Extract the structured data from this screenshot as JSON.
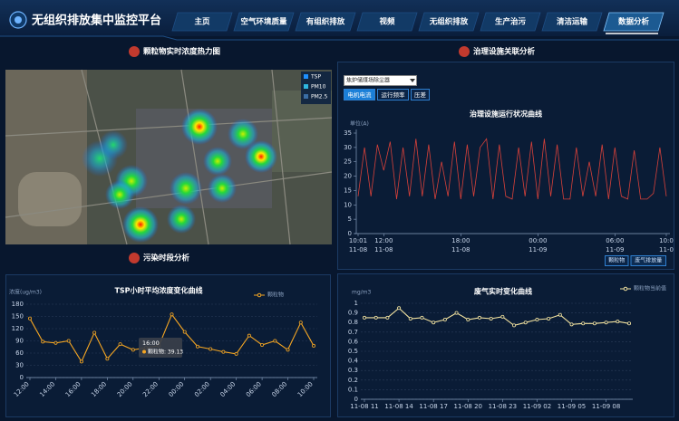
{
  "header": {
    "title": "无组织排放集中监控平台",
    "nav": [
      "主页",
      "空气环境质量",
      "有组织排放",
      "视频",
      "无组织排放",
      "生产治污",
      "清洁运输",
      "数据分析"
    ],
    "active": 7
  },
  "panels": {
    "heatmap": {
      "title": "颗粒物实时浓度热力图",
      "layers": [
        "TSP",
        "PM10",
        "PM2.5"
      ]
    },
    "facility": {
      "title": "治理设施关联分析",
      "select": "焦炉储煤场除尘器",
      "tabs": [
        "电机电流",
        "运行频率",
        "压差"
      ],
      "buttons": [
        "颗粒物",
        "废气排放量"
      ]
    },
    "period": {
      "title": "污染时段分析"
    }
  },
  "chart_data": [
    {
      "type": "line",
      "title": "治理设施运行状况曲线",
      "y_label": "单位(A)",
      "categories": [
        "10:01",
        null,
        null,
        null,
        "12:00",
        null,
        null,
        null,
        null,
        null,
        null,
        null,
        null,
        null,
        null,
        null,
        "18:00",
        null,
        null,
        null,
        null,
        null,
        null,
        null,
        null,
        null,
        null,
        null,
        "00:00",
        null,
        null,
        null,
        null,
        null,
        null,
        null,
        null,
        null,
        null,
        null,
        "06:00",
        null,
        null,
        null,
        null,
        null,
        null,
        null,
        "10:0"
      ],
      "category_dates": [
        "11-08",
        null,
        null,
        null,
        "11-08",
        null,
        null,
        null,
        null,
        null,
        null,
        null,
        null,
        null,
        null,
        null,
        "11-08",
        null,
        null,
        null,
        null,
        null,
        null,
        null,
        null,
        null,
        null,
        null,
        "11-09",
        null,
        null,
        null,
        null,
        null,
        null,
        null,
        null,
        null,
        null,
        null,
        "11-09",
        null,
        null,
        null,
        null,
        null,
        null,
        null,
        "11-0"
      ],
      "series": [
        {
          "color": "#d8413a",
          "values": [
            13,
            30,
            13,
            31,
            22,
            32,
            12,
            30,
            13,
            33,
            13,
            31,
            12,
            25,
            13,
            32,
            12,
            31,
            13,
            30,
            33,
            12,
            31,
            13,
            12,
            30,
            13,
            32,
            12,
            33,
            13,
            31,
            12,
            12,
            30,
            13,
            25,
            13,
            31,
            12,
            30,
            13,
            12,
            29,
            12,
            12,
            14,
            30,
            13
          ]
        }
      ],
      "ylim": [
        0,
        35
      ],
      "yticks": [
        0,
        5,
        10,
        15,
        20,
        25,
        30,
        35
      ],
      "grid": false
    },
    {
      "type": "line",
      "title": "TSP小时平均浓度变化曲线",
      "y_label": "浓度(ug/m3)",
      "categories": [
        "12:00",
        null,
        "14:00",
        null,
        "16:00",
        null,
        "18:00",
        null,
        "20:00",
        null,
        "22:00",
        null,
        "00:00",
        null,
        "02:00",
        null,
        "04:00",
        null,
        "06:00",
        null,
        "08:00",
        null,
        "10:00"
      ],
      "series": [
        {
          "name": "颗粒物",
          "color": "#f5a623",
          "values": [
            145,
            88,
            85,
            90,
            39.13,
            110,
            46,
            82,
            68,
            73,
            78,
            155,
            112,
            76,
            70,
            63,
            58,
            103,
            80,
            90,
            68,
            135,
            78
          ]
        }
      ],
      "ylim": [
        0,
        180
      ],
      "yticks": [
        0,
        30,
        60,
        90,
        120,
        150,
        180
      ],
      "grid": true,
      "tooltip": {
        "title": "16:00",
        "text": "颗粒物: 39.13"
      }
    },
    {
      "type": "line",
      "title": "废气实时变化曲线",
      "y_label": "mg/m3",
      "categories": [
        "11-08 11",
        null,
        null,
        "11-08 14",
        null,
        null,
        "11-08 17",
        null,
        null,
        "11-08 20",
        null,
        null,
        "11-08 23",
        null,
        null,
        "11-09 02",
        null,
        null,
        "11-09 05",
        null,
        null,
        "11-09 08",
        null,
        null
      ],
      "series": [
        {
          "name": "颗粒物当前值",
          "color": "#f3e3a0",
          "values": [
            0.85,
            0.85,
            0.85,
            0.95,
            0.84,
            0.85,
            0.8,
            0.83,
            0.9,
            0.83,
            0.85,
            0.84,
            0.86,
            0.77,
            0.8,
            0.83,
            0.84,
            0.88,
            0.78,
            0.79,
            0.79,
            0.8,
            0.81,
            0.79
          ]
        }
      ],
      "ylim": [
        0,
        1
      ],
      "yticks": [
        0,
        0.1,
        0.2,
        0.3,
        0.4,
        0.5,
        0.6,
        0.7,
        0.8,
        0.9,
        1
      ],
      "grid": true
    }
  ]
}
